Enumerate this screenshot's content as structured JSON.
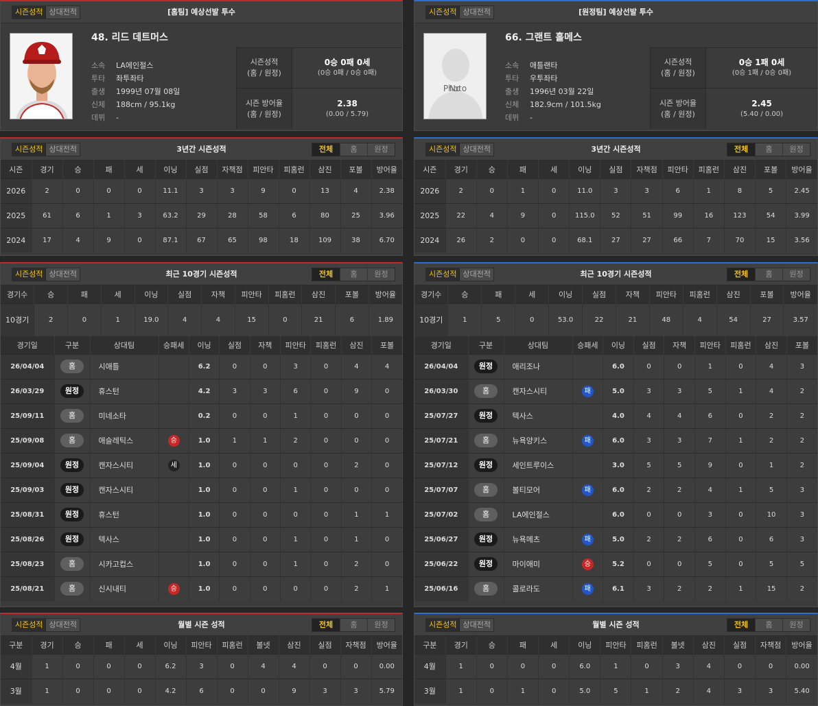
{
  "tab_labels": {
    "season": "시즌성적",
    "vs": "상대전적"
  },
  "seg_labels": {
    "all": "전체",
    "home": "홈",
    "away": "원정"
  },
  "home": {
    "header": "[홈팀] 예상선발 투수",
    "name": "48. 리드 데트머스",
    "info": [
      {
        "k": "소속",
        "v": "LA에인절스"
      },
      {
        "k": "투타",
        "v": "좌투좌타"
      },
      {
        "k": "출생",
        "v": "1999년 07월 08일"
      },
      {
        "k": "신체",
        "v": "188cm / 95.1kg"
      },
      {
        "k": "데뷔",
        "v": "-"
      }
    ],
    "stat_labels": [
      {
        "a": "시즌성적",
        "b": "(홈 / 원정)"
      },
      {
        "a": "시즌 방어율",
        "b": "(홈 / 원정)"
      }
    ],
    "record_main": "0승 0패 0세",
    "record_sub": "(0승 0패 / 0승 0패)",
    "era_main": "2.38",
    "era_sub": "(0.00 / 5.79)",
    "three_year_title": "3년간 시즌성적",
    "three_year_headers": [
      "시즌",
      "경기",
      "승",
      "패",
      "세",
      "이닝",
      "실점",
      "자책점",
      "피안타",
      "피홈런",
      "삼진",
      "포볼",
      "방어율"
    ],
    "three_year": [
      [
        "2026",
        "2",
        "0",
        "0",
        "0",
        "11.1",
        "3",
        "3",
        "9",
        "0",
        "13",
        "4",
        "2.38"
      ],
      [
        "2025",
        "61",
        "6",
        "1",
        "3",
        "63.2",
        "29",
        "28",
        "58",
        "6",
        "80",
        "25",
        "3.96"
      ],
      [
        "2024",
        "17",
        "4",
        "9",
        "0",
        "87.1",
        "67",
        "65",
        "98",
        "18",
        "109",
        "38",
        "6.70"
      ]
    ],
    "recent_title": "최근 10경기 시즌성적",
    "recent_headers": [
      "경기수",
      "승",
      "패",
      "세",
      "이닝",
      "실점",
      "자책",
      "피안타",
      "피홈런",
      "삼진",
      "포볼",
      "방어율"
    ],
    "recent": [
      "10경기",
      "2",
      "0",
      "1",
      "19.0",
      "4",
      "4",
      "15",
      "0",
      "21",
      "6",
      "1.89"
    ],
    "game_headers": [
      "경기일",
      "구분",
      "상대팀",
      "승패세",
      "이닝",
      "실점",
      "자책",
      "피안타",
      "피홈런",
      "삼진",
      "포볼"
    ],
    "games": [
      {
        "date": "26/04/04",
        "loc": "홈",
        "opp": "시애틀",
        "dec": "",
        "ip": "6.2",
        "r": "0",
        "er": "0",
        "h": "3",
        "hr": "0",
        "so": "4",
        "bb": "4"
      },
      {
        "date": "26/03/29",
        "loc": "원정",
        "opp": "휴스턴",
        "dec": "",
        "ip": "4.2",
        "r": "3",
        "er": "3",
        "h": "6",
        "hr": "0",
        "so": "9",
        "bb": "0"
      },
      {
        "date": "25/09/11",
        "loc": "홈",
        "opp": "미네소타",
        "dec": "",
        "ip": "0.2",
        "r": "0",
        "er": "0",
        "h": "1",
        "hr": "0",
        "so": "0",
        "bb": "0"
      },
      {
        "date": "25/09/08",
        "loc": "홈",
        "opp": "애슬레틱스",
        "dec": "승",
        "ip": "1.0",
        "r": "1",
        "er": "1",
        "h": "2",
        "hr": "0",
        "so": "0",
        "bb": "0"
      },
      {
        "date": "25/09/04",
        "loc": "원정",
        "opp": "캔자스시티",
        "dec": "세",
        "ip": "1.0",
        "r": "0",
        "er": "0",
        "h": "0",
        "hr": "0",
        "so": "2",
        "bb": "0"
      },
      {
        "date": "25/09/03",
        "loc": "원정",
        "opp": "캔자스시티",
        "dec": "",
        "ip": "1.0",
        "r": "0",
        "er": "0",
        "h": "1",
        "hr": "0",
        "so": "0",
        "bb": "0"
      },
      {
        "date": "25/08/31",
        "loc": "원정",
        "opp": "휴스턴",
        "dec": "",
        "ip": "1.0",
        "r": "0",
        "er": "0",
        "h": "0",
        "hr": "0",
        "so": "1",
        "bb": "1"
      },
      {
        "date": "25/08/26",
        "loc": "원정",
        "opp": "텍사스",
        "dec": "",
        "ip": "1.0",
        "r": "0",
        "er": "0",
        "h": "1",
        "hr": "0",
        "so": "1",
        "bb": "0"
      },
      {
        "date": "25/08/23",
        "loc": "홈",
        "opp": "시카고컵스",
        "dec": "",
        "ip": "1.0",
        "r": "0",
        "er": "0",
        "h": "1",
        "hr": "0",
        "so": "2",
        "bb": "0"
      },
      {
        "date": "25/08/21",
        "loc": "홈",
        "opp": "신시내티",
        "dec": "승",
        "ip": "1.0",
        "r": "0",
        "er": "0",
        "h": "0",
        "hr": "0",
        "so": "2",
        "bb": "1"
      }
    ],
    "monthly_title": "월별 시즌 성적",
    "monthly_headers": [
      "구분",
      "경기",
      "승",
      "패",
      "세",
      "이닝",
      "피안타",
      "피홈런",
      "볼넷",
      "삼진",
      "실점",
      "자책점",
      "방어율"
    ],
    "monthly": [
      [
        "4월",
        "1",
        "0",
        "0",
        "0",
        "6.2",
        "3",
        "0",
        "4",
        "4",
        "0",
        "0",
        "0.00"
      ],
      [
        "3월",
        "1",
        "0",
        "0",
        "0",
        "4.2",
        "6",
        "0",
        "0",
        "9",
        "3",
        "3",
        "5.79"
      ]
    ]
  },
  "away": {
    "header": "[원정팀] 예상선발 투수",
    "name": "66. 그랜트 홀메스",
    "photo_placeholder_line1": "No",
    "photo_placeholder_line2": "Photo",
    "info": [
      {
        "k": "소속",
        "v": "애틀랜타"
      },
      {
        "k": "투타",
        "v": "우투좌타"
      },
      {
        "k": "출생",
        "v": "1996년 03월 22일"
      },
      {
        "k": "신체",
        "v": "182.9cm / 101.5kg"
      },
      {
        "k": "데뷔",
        "v": "-"
      }
    ],
    "stat_labels": [
      {
        "a": "시즌성적",
        "b": "(홈 / 원정)"
      },
      {
        "a": "시즌 방어율",
        "b": "(홈 / 원정)"
      }
    ],
    "record_main": "0승 1패 0세",
    "record_sub": "(0승 1패 / 0승 0패)",
    "era_main": "2.45",
    "era_sub": "(5.40 / 0.00)",
    "three_year_title": "3년간 시즌성적",
    "three_year_headers": [
      "시즌",
      "경기",
      "승",
      "패",
      "세",
      "이닝",
      "실점",
      "자책점",
      "피안타",
      "피홈런",
      "삼진",
      "포볼",
      "방어율"
    ],
    "three_year": [
      [
        "2026",
        "2",
        "0",
        "1",
        "0",
        "11.0",
        "3",
        "3",
        "6",
        "1",
        "8",
        "5",
        "2.45"
      ],
      [
        "2025",
        "22",
        "4",
        "9",
        "0",
        "115.0",
        "52",
        "51",
        "99",
        "16",
        "123",
        "54",
        "3.99"
      ],
      [
        "2024",
        "26",
        "2",
        "0",
        "0",
        "68.1",
        "27",
        "27",
        "66",
        "7",
        "70",
        "15",
        "3.56"
      ]
    ],
    "recent_title": "최근 10경기 시즌성적",
    "recent_headers": [
      "경기수",
      "승",
      "패",
      "세",
      "이닝",
      "실점",
      "자책",
      "피안타",
      "피홈런",
      "삼진",
      "포볼",
      "방어율"
    ],
    "recent": [
      "10경기",
      "1",
      "5",
      "0",
      "53.0",
      "22",
      "21",
      "48",
      "4",
      "54",
      "27",
      "3.57"
    ],
    "game_headers": [
      "경기일",
      "구분",
      "상대팀",
      "승패세",
      "이닝",
      "실점",
      "자책",
      "피안타",
      "피홈런",
      "삼진",
      "포볼"
    ],
    "games": [
      {
        "date": "26/04/04",
        "loc": "원정",
        "opp": "애리조나",
        "dec": "",
        "ip": "6.0",
        "r": "0",
        "er": "0",
        "h": "1",
        "hr": "0",
        "so": "4",
        "bb": "3"
      },
      {
        "date": "26/03/30",
        "loc": "홈",
        "opp": "캔자스시티",
        "dec": "패",
        "ip": "5.0",
        "r": "3",
        "er": "3",
        "h": "5",
        "hr": "1",
        "so": "4",
        "bb": "2"
      },
      {
        "date": "25/07/27",
        "loc": "원정",
        "opp": "텍사스",
        "dec": "",
        "ip": "4.0",
        "r": "4",
        "er": "4",
        "h": "6",
        "hr": "0",
        "so": "2",
        "bb": "2"
      },
      {
        "date": "25/07/21",
        "loc": "홈",
        "opp": "뉴욕양키스",
        "dec": "패",
        "ip": "6.0",
        "r": "3",
        "er": "3",
        "h": "7",
        "hr": "1",
        "so": "2",
        "bb": "2"
      },
      {
        "date": "25/07/12",
        "loc": "원정",
        "opp": "세인트루이스",
        "dec": "",
        "ip": "3.0",
        "r": "5",
        "er": "5",
        "h": "9",
        "hr": "0",
        "so": "1",
        "bb": "2"
      },
      {
        "date": "25/07/07",
        "loc": "홈",
        "opp": "볼티모어",
        "dec": "패",
        "ip": "6.0",
        "r": "2",
        "er": "2",
        "h": "4",
        "hr": "1",
        "so": "5",
        "bb": "3"
      },
      {
        "date": "25/07/02",
        "loc": "홈",
        "opp": "LA에인절스",
        "dec": "",
        "ip": "6.0",
        "r": "0",
        "er": "0",
        "h": "3",
        "hr": "0",
        "so": "10",
        "bb": "3"
      },
      {
        "date": "25/06/27",
        "loc": "원정",
        "opp": "뉴욕메츠",
        "dec": "패",
        "ip": "5.0",
        "r": "2",
        "er": "2",
        "h": "6",
        "hr": "0",
        "so": "6",
        "bb": "3"
      },
      {
        "date": "25/06/22",
        "loc": "원정",
        "opp": "마이애미",
        "dec": "승",
        "ip": "5.2",
        "r": "0",
        "er": "0",
        "h": "5",
        "hr": "0",
        "so": "5",
        "bb": "5"
      },
      {
        "date": "25/06/16",
        "loc": "홈",
        "opp": "콜로라도",
        "dec": "패",
        "ip": "6.1",
        "r": "3",
        "er": "2",
        "h": "2",
        "hr": "1",
        "so": "15",
        "bb": "2"
      }
    ],
    "monthly_title": "월별 시즌 성적",
    "monthly_headers": [
      "구분",
      "경기",
      "승",
      "패",
      "세",
      "이닝",
      "피안타",
      "피홈런",
      "볼넷",
      "삼진",
      "실점",
      "자책점",
      "방어율"
    ],
    "monthly": [
      [
        "4월",
        "1",
        "0",
        "0",
        "0",
        "6.0",
        "1",
        "0",
        "3",
        "4",
        "0",
        "0",
        "0.00"
      ],
      [
        "3월",
        "1",
        "0",
        "1",
        "0",
        "5.0",
        "5",
        "1",
        "2",
        "4",
        "3",
        "3",
        "5.40"
      ]
    ]
  }
}
